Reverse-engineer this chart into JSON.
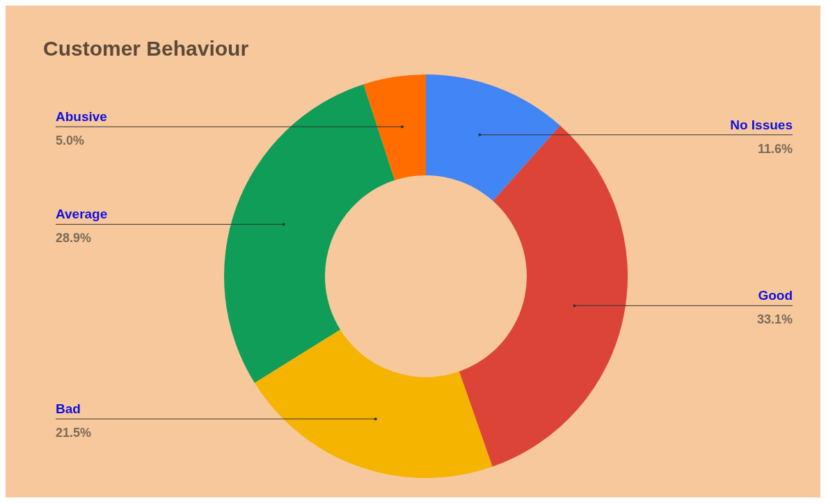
{
  "chart_data": {
    "type": "donut",
    "title": "Customer Behaviour",
    "categories": [
      "No Issues",
      "Good",
      "Bad",
      "Average",
      "Abusive"
    ],
    "values": [
      11.6,
      33.1,
      21.5,
      28.9,
      5.0
    ],
    "colors": [
      "#4285f4",
      "#db4437",
      "#f4b400",
      "#0f9d58",
      "#ff6d01"
    ],
    "value_labels": [
      "11.6%",
      "33.1%",
      "21.5%",
      "28.9%",
      "5.0%"
    ],
    "legend": false
  }
}
